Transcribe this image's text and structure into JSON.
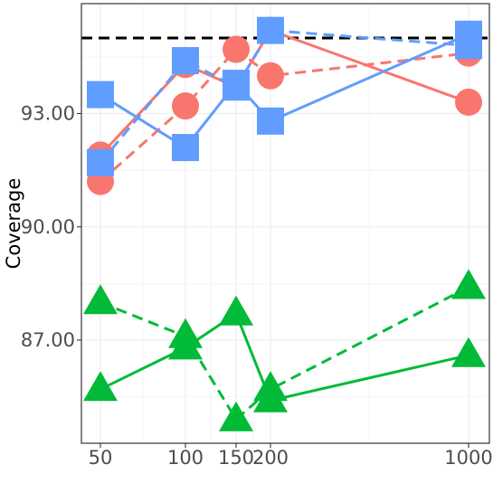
{
  "chart_data": {
    "type": "line",
    "title": "",
    "xlabel": "",
    "ylabel": "Coverage",
    "x_ticks": [
      50,
      100,
      150,
      200,
      1000
    ],
    "x_tick_labels": [
      "50",
      "100",
      "150",
      "200",
      "1000"
    ],
    "y_ticks": [
      87,
      90,
      93
    ],
    "y_tick_labels": [
      "87.00",
      "90.00",
      "93.00"
    ],
    "ylim": [
      84.27,
      96.0
    ],
    "grid": true,
    "legend": "none",
    "reference_line": {
      "y": 95.0,
      "style": "dashed",
      "color": "#000000"
    },
    "series": [
      {
        "color": "#F8766D",
        "marker": "circle",
        "line": "solid",
        "x": [
          50,
          100,
          150,
          200,
          1000
        ],
        "values": [
          91.9,
          94.3,
          93.7,
          95.2,
          93.3
        ]
      },
      {
        "color": "#F8766D",
        "marker": "circle",
        "line": "dashed",
        "x": [
          50,
          100,
          150,
          200,
          1000
        ],
        "values": [
          91.2,
          93.2,
          94.7,
          94.0,
          94.6
        ]
      },
      {
        "color": "#619CFF",
        "marker": "square",
        "line": "solid",
        "x": [
          50,
          100,
          150,
          200,
          1000
        ],
        "values": [
          93.5,
          92.1,
          93.8,
          92.8,
          95.1
        ]
      },
      {
        "color": "#619CFF",
        "marker": "square",
        "line": "dashed",
        "x": [
          50,
          100,
          150,
          200,
          1000
        ],
        "values": [
          91.7,
          94.4,
          93.7,
          95.2,
          94.8
        ]
      },
      {
        "color": "#00BA38",
        "marker": "triangle",
        "line": "solid",
        "x": [
          50,
          100,
          150,
          200,
          1000
        ],
        "values": [
          85.7,
          86.8,
          87.7,
          85.4,
          86.6
        ]
      },
      {
        "color": "#00BA38",
        "marker": "triangle",
        "line": "dashed",
        "x": [
          50,
          100,
          150,
          200,
          1000
        ],
        "values": [
          88.0,
          87.1,
          84.9,
          85.7,
          88.4
        ]
      }
    ]
  }
}
